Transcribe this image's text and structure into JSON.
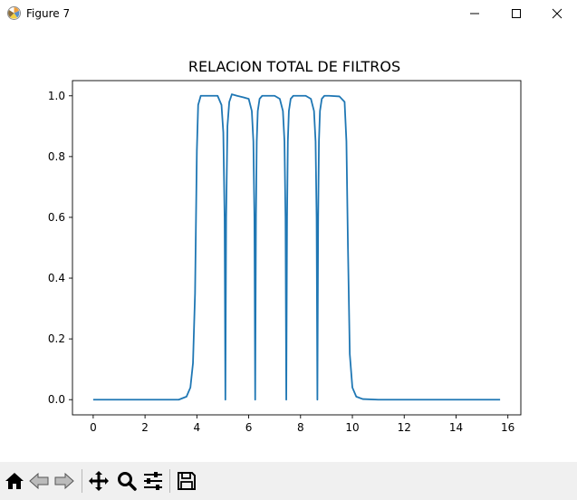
{
  "window": {
    "title": "Figure 7",
    "icon": "matplotlib-icon",
    "controls": [
      "minimize-icon",
      "maximize-icon",
      "close-icon"
    ]
  },
  "toolbar": {
    "buttons": [
      {
        "name": "home-icon",
        "label": "Home"
      },
      {
        "name": "back-icon",
        "label": "Back"
      },
      {
        "name": "forward-icon",
        "label": "Forward"
      },
      {
        "name": "pan-icon",
        "label": "Pan"
      },
      {
        "name": "zoom-icon",
        "label": "Zoom"
      },
      {
        "name": "subplots-icon",
        "label": "Configure subplots"
      },
      {
        "name": "save-icon",
        "label": "Save"
      }
    ]
  },
  "chart_data": {
    "type": "line",
    "title": "RELACION TOTAL DE FILTROS",
    "xlabel": "",
    "ylabel": "",
    "xlim": [
      -0.8,
      16.5
    ],
    "ylim": [
      -0.05,
      1.05
    ],
    "xticks": [
      0,
      2,
      4,
      6,
      8,
      10,
      12,
      14,
      16
    ],
    "xtick_labels": [
      "0",
      "2",
      "4",
      "6",
      "8",
      "10",
      "12",
      "14",
      "16"
    ],
    "yticks": [
      0.0,
      0.2,
      0.4,
      0.6,
      0.8,
      1.0
    ],
    "ytick_labels": [
      "0.0",
      "0.2",
      "0.4",
      "0.6",
      "0.8",
      "1.0"
    ],
    "grid": false,
    "line_color": "#1f77b4",
    "series": [
      {
        "name": "",
        "x": [
          0,
          3.3,
          3.6,
          3.75,
          3.85,
          3.93,
          4.0,
          4.05,
          4.15,
          4.5,
          4.8,
          4.95,
          5.02,
          5.07,
          5.1,
          5.13,
          5.18,
          5.25,
          5.35,
          5.55,
          5.8,
          6.0,
          6.12,
          6.18,
          6.22,
          6.25,
          6.28,
          6.31,
          6.35,
          6.42,
          6.52,
          6.7,
          7.0,
          7.2,
          7.32,
          7.38,
          7.42,
          7.45,
          7.48,
          7.51,
          7.55,
          7.62,
          7.72,
          7.9,
          8.2,
          8.4,
          8.52,
          8.58,
          8.62,
          8.65,
          8.68,
          8.71,
          8.75,
          8.82,
          8.92,
          9.1,
          9.5,
          9.7,
          9.77,
          9.83,
          9.9,
          10.0,
          10.15,
          10.4,
          11.0,
          15.7
        ],
        "y": [
          0,
          0.0,
          0.01,
          0.04,
          0.12,
          0.35,
          0.82,
          0.97,
          1.0,
          1.0,
          1.0,
          0.97,
          0.88,
          0.6,
          0.0,
          0.6,
          0.9,
          0.98,
          1.005,
          1.0,
          0.995,
          0.99,
          0.95,
          0.85,
          0.6,
          0.0,
          0.6,
          0.85,
          0.95,
          0.99,
          1.0,
          1.0,
          1.0,
          0.99,
          0.95,
          0.85,
          0.6,
          0.0,
          0.6,
          0.85,
          0.95,
          0.99,
          1.0,
          1.0,
          1.0,
          0.99,
          0.95,
          0.85,
          0.6,
          0.0,
          0.6,
          0.85,
          0.95,
          0.99,
          1.0,
          1.0,
          0.998,
          0.98,
          0.85,
          0.5,
          0.15,
          0.04,
          0.01,
          0.002,
          0.0,
          0.0
        ]
      }
    ]
  }
}
